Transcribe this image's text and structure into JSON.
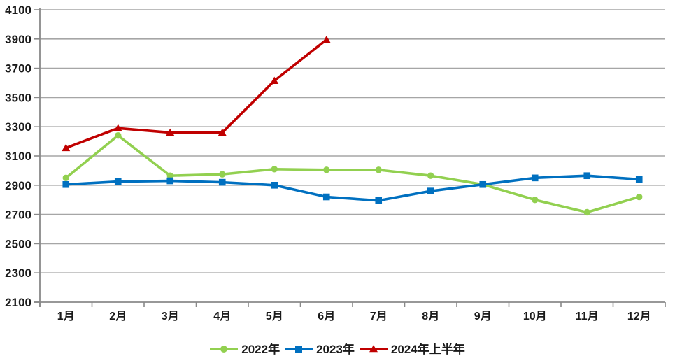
{
  "chart_data": {
    "type": "line",
    "title": "",
    "xlabel": "",
    "ylabel": "",
    "categories": [
      "1月",
      "2月",
      "3月",
      "4月",
      "5月",
      "6月",
      "7月",
      "8月",
      "9月",
      "10月",
      "11月",
      "12月"
    ],
    "series": [
      {
        "name": "2022年",
        "color": "#92D050",
        "marker": "circle",
        "values": [
          2950,
          3240,
          2965,
          2975,
          3010,
          3005,
          3005,
          2965,
          2905,
          2800,
          2715,
          2820
        ]
      },
      {
        "name": "2023年",
        "color": "#0070C0",
        "marker": "square",
        "values": [
          2905,
          2925,
          2930,
          2920,
          2900,
          2820,
          2795,
          2860,
          2905,
          2950,
          2965,
          2940
        ]
      },
      {
        "name": "2024年上半年",
        "color": "#C00000",
        "marker": "triangle",
        "values": [
          3155,
          3290,
          3260,
          3260,
          3615,
          3895
        ]
      }
    ],
    "ylim": [
      2100,
      4100
    ],
    "ytick_step": 200,
    "grid": true,
    "legend_position": "bottom",
    "gridline_color": "#A6A6A6",
    "axis_color": "#898989",
    "text_color": "#1A1A1A",
    "background": "#FFFFFF"
  }
}
